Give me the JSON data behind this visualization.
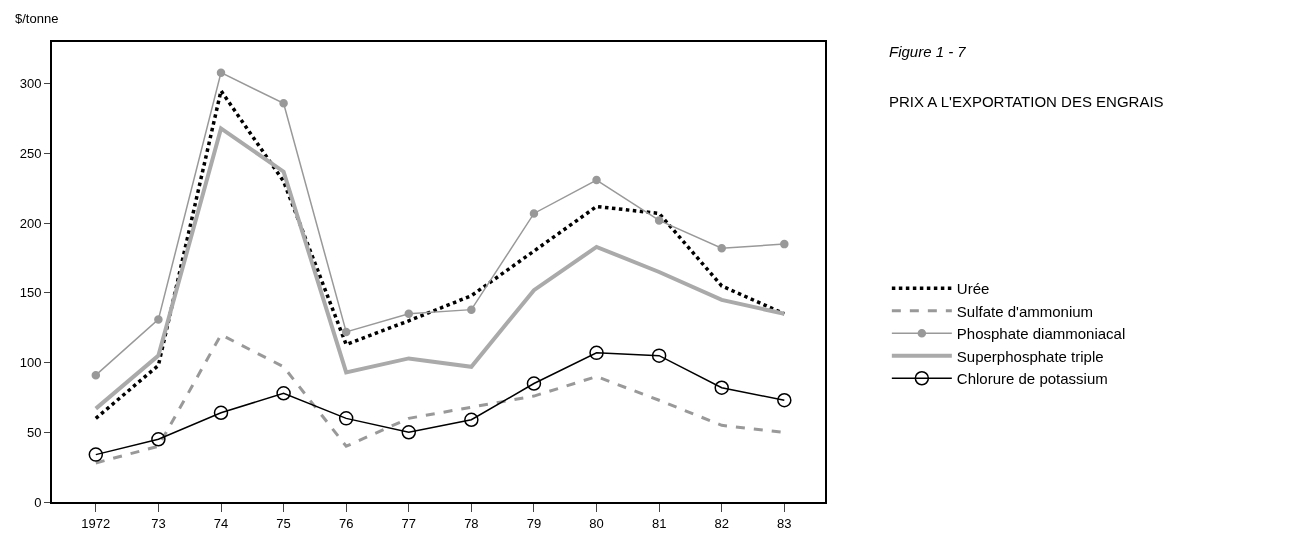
{
  "chart_data": {
    "type": "line",
    "title": "PRIX A L'EXPORTATION DES ENGRAIS",
    "subtitle": "Figure 1 - 7",
    "ylabel": "$/tonne",
    "categories": [
      "1972",
      "73",
      "74",
      "75",
      "76",
      "77",
      "78",
      "79",
      "80",
      "81",
      "82",
      "83"
    ],
    "series": [
      {
        "name": "Urée",
        "color": "#000000",
        "line_style": "dotted",
        "marker": "none",
        "values": [
          60,
          98,
          295,
          230,
          113,
          130,
          148,
          180,
          212,
          207,
          155,
          135
        ]
      },
      {
        "name": "Sulfate d'ammonium",
        "color": "#999999",
        "line_style": "dashed",
        "marker": "none",
        "values": [
          28,
          40,
          120,
          97,
          40,
          60,
          68,
          76,
          90,
          73,
          55,
          50
        ]
      },
      {
        "name": "Phosphate diammoniacal",
        "color": "#999999",
        "line_style": "solid",
        "marker": "circle",
        "values": [
          91,
          131,
          308,
          286,
          122,
          135,
          138,
          207,
          231,
          202,
          182,
          185
        ]
      },
      {
        "name": "Superphosphate triple",
        "color": "#aaaaaa",
        "line_style": "solid",
        "marker": "none",
        "values": [
          67,
          105,
          268,
          237,
          93,
          103,
          97,
          152,
          183,
          165,
          145,
          135
        ]
      },
      {
        "name": "Chlorure de potassium",
        "color": "#000000",
        "line_style": "solid",
        "marker": "circle",
        "values": [
          34,
          45,
          64,
          78,
          60,
          50,
          59,
          85,
          107,
          105,
          82,
          73
        ]
      }
    ],
    "ylim": [
      0,
      330
    ],
    "yticks": [
      0,
      50,
      100,
      150,
      200,
      250,
      300
    ],
    "grid": false,
    "legend": "right"
  }
}
